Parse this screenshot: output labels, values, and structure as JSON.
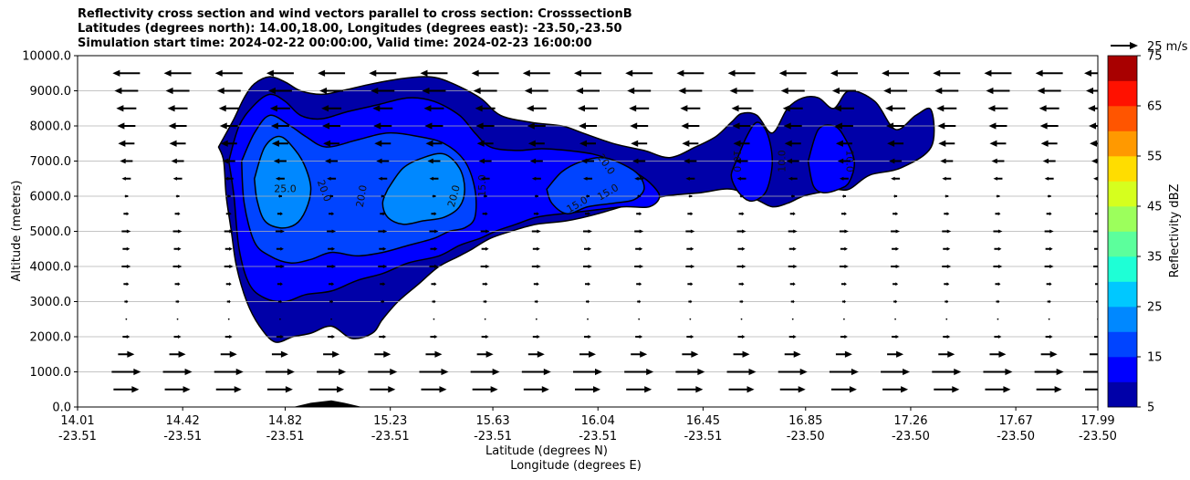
{
  "chart_data": {
    "type": "contour",
    "title": [
      "Reflectivity cross section and wind vectors parallel to cross section: CrosssectionB",
      "Latitudes (degrees north): 14.00,18.00, Longitudes (degrees east): -23.50,-23.50",
      "Simulation start time: 2024-02-22 00:00:00, Valid time: 2024-02-23 16:00:00"
    ],
    "xlabel_lat": "Latitude (degrees N)",
    "xlabel_lon": "Longitude (degrees E)",
    "ylabel": "Altitude (meters)",
    "xlim": [
      14.01,
      17.99
    ],
    "ylim": [
      0,
      10000
    ],
    "x_ticks": [
      {
        "lat": "14.01",
        "lon": "-23.51",
        "v": 14.01
      },
      {
        "lat": "14.42",
        "lon": "-23.51",
        "v": 14.42
      },
      {
        "lat": "14.82",
        "lon": "-23.51",
        "v": 14.82
      },
      {
        "lat": "15.23",
        "lon": "-23.51",
        "v": 15.23
      },
      {
        "lat": "15.63",
        "lon": "-23.51",
        "v": 15.63
      },
      {
        "lat": "16.04",
        "lon": "-23.51",
        "v": 16.04
      },
      {
        "lat": "16.45",
        "lon": "-23.51",
        "v": 16.45
      },
      {
        "lat": "16.85",
        "lon": "-23.50",
        "v": 16.85
      },
      {
        "lat": "17.26",
        "lon": "-23.50",
        "v": 17.26
      },
      {
        "lat": "17.67",
        "lon": "-23.50",
        "v": 17.67
      },
      {
        "lat": "17.99",
        "lon": "-23.50",
        "v": 17.99
      }
    ],
    "y_ticks": [
      {
        "label": "0.0",
        "v": 0
      },
      {
        "label": "1000.0",
        "v": 1000
      },
      {
        "label": "2000.0",
        "v": 2000
      },
      {
        "label": "3000.0",
        "v": 3000
      },
      {
        "label": "4000.0",
        "v": 4000
      },
      {
        "label": "5000.0",
        "v": 5000
      },
      {
        "label": "6000.0",
        "v": 6000
      },
      {
        "label": "7000.0",
        "v": 7000
      },
      {
        "label": "8000.0",
        "v": 8000
      },
      {
        "label": "9000.0",
        "v": 9000
      },
      {
        "label": "10000.0",
        "v": 10000
      }
    ],
    "grid": "horizontal",
    "colorbar": {
      "label": "Reflectivity dBZ",
      "levels": [
        5,
        10,
        15,
        20,
        25,
        30,
        35,
        40,
        45,
        50,
        55,
        60,
        65,
        70,
        75
      ],
      "tick_labels": [
        {
          "label": "5",
          "v": 5
        },
        {
          "label": "15",
          "v": 15
        },
        {
          "label": "25",
          "v": 25
        },
        {
          "label": "35",
          "v": 35
        },
        {
          "label": "45",
          "v": 45
        },
        {
          "label": "55",
          "v": 55
        },
        {
          "label": "65",
          "v": 65
        },
        {
          "label": "75",
          "v": 75
        }
      ],
      "colors": [
        "#0000a8",
        "#0000ff",
        "#0044ff",
        "#0088ff",
        "#00c8ff",
        "#1effd6",
        "#5cff9c",
        "#9cff5c",
        "#d6ff1e",
        "#ffdd00",
        "#ff9900",
        "#ff5500",
        "#ff1100",
        "#a80000"
      ]
    },
    "wind_reference": {
      "label": "25 m/s",
      "value": 25
    },
    "contour_labels": [
      {
        "text": "25.0",
        "x": 14.82,
        "y": 6200,
        "rot": 0
      },
      {
        "text": "20.0",
        "x": 14.97,
        "y": 6150,
        "rot": 70
      },
      {
        "text": "20.0",
        "x": 15.12,
        "y": 6000,
        "rot": -80
      },
      {
        "text": "20.0",
        "x": 15.48,
        "y": 6000,
        "rot": -75
      },
      {
        "text": "15.0",
        "x": 15.59,
        "y": 6300,
        "rot": -90
      },
      {
        "text": "15.0",
        "x": 15.96,
        "y": 5750,
        "rot": -30
      },
      {
        "text": "15.0",
        "x": 16.08,
        "y": 6100,
        "rot": -30
      },
      {
        "text": "20.0",
        "x": 16.07,
        "y": 6900,
        "rot": 55
      },
      {
        "text": "10.0",
        "x": 16.58,
        "y": 7000,
        "rot": 90
      },
      {
        "text": "10.0",
        "x": 16.76,
        "y": 7000,
        "rot": -90
      },
      {
        "text": "10.0",
        "x": 17.02,
        "y": 7000,
        "rot": 90
      }
    ],
    "terrain": {
      "x": [
        14.85,
        14.92,
        15.0,
        15.05,
        15.12
      ],
      "y": [
        0,
        120,
        190,
        120,
        0
      ]
    },
    "reflectivity_regions": [
      {
        "level": 5,
        "x": [
          14.56,
          14.62,
          14.66,
          14.7,
          14.76,
          14.82,
          14.88,
          14.96,
          15.04,
          15.16,
          15.28,
          15.38,
          15.46,
          15.58,
          15.66,
          15.78,
          15.9,
          15.98,
          16.1,
          16.22,
          16.32,
          16.42,
          16.5,
          16.56,
          16.6,
          16.66,
          16.72,
          16.78,
          16.84,
          16.9,
          16.96,
          17.02,
          17.12,
          17.2,
          17.28,
          17.34,
          17.34,
          17.22,
          17.1,
          17.02,
          16.96,
          16.9,
          16.84,
          16.78,
          16.72,
          16.66,
          16.56,
          16.44,
          16.3,
          16.18,
          16.04,
          15.92,
          15.8,
          15.7,
          15.62,
          15.55,
          15.5,
          15.42,
          15.34,
          15.26,
          15.2,
          15.16,
          15.08,
          15.0,
          14.92,
          14.85,
          14.78,
          14.72,
          14.67,
          14.63,
          14.61,
          14.59,
          14.58,
          14.56
        ],
        "y": [
          7400,
          8200,
          8800,
          9200,
          9400,
          9250,
          9000,
          8900,
          9000,
          9200,
          9350,
          9400,
          9250,
          8800,
          8300,
          8100,
          8000,
          7800,
          7500,
          7300,
          7100,
          7400,
          7700,
          8100,
          8350,
          8300,
          7800,
          8500,
          8800,
          8800,
          8500,
          9000,
          8700,
          7900,
          8300,
          8450,
          7400,
          6800,
          6600,
          6200,
          6200,
          6100,
          6000,
          5800,
          5700,
          5900,
          6200,
          6100,
          6000,
          5800,
          5500,
          5300,
          5200,
          5000,
          4800,
          4500,
          4300,
          4000,
          3500,
          3000,
          2500,
          2100,
          1950,
          2300,
          2100,
          2000,
          1850,
          2300,
          3000,
          4000,
          5000,
          6000,
          7000,
          7400
        ]
      },
      {
        "level": 10,
        "x": [
          14.6,
          14.64,
          14.7,
          14.76,
          14.82,
          14.88,
          14.96,
          15.06,
          15.18,
          15.3,
          15.4,
          15.5,
          15.56,
          15.62,
          15.72,
          15.82,
          15.92,
          16.02,
          16.1,
          16.18,
          16.24,
          16.28,
          16.24,
          16.14,
          16.02,
          15.9,
          15.8,
          15.72,
          15.64,
          15.58,
          15.5,
          15.42,
          15.3,
          15.2,
          15.1,
          15.0,
          14.9,
          14.82,
          14.74,
          14.68,
          14.64,
          14.62,
          14.6
        ],
        "y": [
          7000,
          8000,
          8600,
          8900,
          8700,
          8300,
          8200,
          8400,
          8600,
          8800,
          8700,
          8300,
          7800,
          7400,
          7300,
          7350,
          7300,
          7200,
          7000,
          6700,
          6400,
          6000,
          5700,
          5700,
          5600,
          5500,
          5400,
          5200,
          5000,
          4800,
          4600,
          4300,
          4100,
          3800,
          3600,
          3300,
          3200,
          3000,
          3100,
          3500,
          4500,
          6000,
          7000
        ]
      },
      {
        "level": 10,
        "x": [
          16.58,
          16.62,
          16.66,
          16.7,
          16.72,
          16.7,
          16.66,
          16.62,
          16.58,
          16.56,
          16.58
        ],
        "y": [
          7000,
          7700,
          8100,
          7800,
          7000,
          6200,
          5900,
          5900,
          6200,
          6600,
          7000
        ]
      },
      {
        "level": 10,
        "x": [
          16.86,
          16.9,
          16.96,
          17.0,
          17.04,
          17.02,
          16.98,
          16.92,
          16.88,
          16.86
        ],
        "y": [
          7000,
          7900,
          8000,
          7700,
          7000,
          6400,
          6200,
          6100,
          6300,
          7000
        ]
      },
      {
        "level": 15,
        "x": [
          14.65,
          14.7,
          14.76,
          14.84,
          14.9,
          14.98,
          15.1,
          15.22,
          15.34,
          15.44,
          15.52,
          15.56,
          15.56,
          15.52,
          15.46,
          15.4,
          15.3,
          15.2,
          15.1,
          15.0,
          14.92,
          14.84,
          14.76,
          14.7,
          14.66,
          14.65
        ],
        "y": [
          7000,
          7800,
          8300,
          8000,
          7700,
          7400,
          7600,
          7800,
          7700,
          7500,
          7000,
          6200,
          5400,
          5100,
          5000,
          4800,
          4600,
          4400,
          4300,
          4400,
          4200,
          4100,
          4300,
          4700,
          5800,
          7000
        ]
      },
      {
        "level": 15,
        "x": [
          15.84,
          15.9,
          15.98,
          16.06,
          16.14,
          16.2,
          16.22,
          16.18,
          16.1,
          16.0,
          15.92,
          15.86,
          15.84
        ],
        "y": [
          6200,
          6700,
          7000,
          7100,
          6900,
          6600,
          6200,
          5900,
          5800,
          5700,
          5500,
          5800,
          6200
        ]
      },
      {
        "level": 20,
        "x": [
          14.7,
          14.74,
          14.8,
          14.86,
          14.9,
          14.92,
          14.9,
          14.86,
          14.8,
          14.74,
          14.71,
          14.7
        ],
        "y": [
          6500,
          7400,
          7700,
          7300,
          6800,
          6200,
          5600,
          5200,
          5100,
          5300,
          5900,
          6500
        ]
      },
      {
        "level": 20,
        "x": [
          15.22,
          15.28,
          15.36,
          15.44,
          15.5,
          15.52,
          15.5,
          15.44,
          15.36,
          15.28,
          15.22,
          15.2,
          15.22
        ],
        "y": [
          6200,
          6800,
          7100,
          7200,
          6800,
          6200,
          5700,
          5400,
          5300,
          5200,
          5400,
          5800,
          6200
        ]
      }
    ],
    "wind_field": {
      "levels_m": [
        500,
        1000,
        1500,
        2000,
        2500,
        3000,
        3500,
        4000,
        4500,
        5000,
        5500,
        6000,
        6500,
        7000,
        7500,
        8000,
        8500,
        9000,
        9500
      ],
      "u_ms": [
        14,
        16,
        9,
        4,
        1,
        2,
        3,
        5,
        4,
        5,
        3,
        -2,
        -5,
        -7,
        -9,
        -10,
        -11,
        -13,
        -15
      ],
      "columns_x": [
        14.2,
        14.4,
        14.6,
        14.8,
        15.0,
        15.2,
        15.4,
        15.6,
        15.8,
        16.0,
        16.2,
        16.4,
        16.6,
        16.8,
        17.0,
        17.2,
        17.4,
        17.6,
        17.8,
        17.99
      ]
    }
  }
}
